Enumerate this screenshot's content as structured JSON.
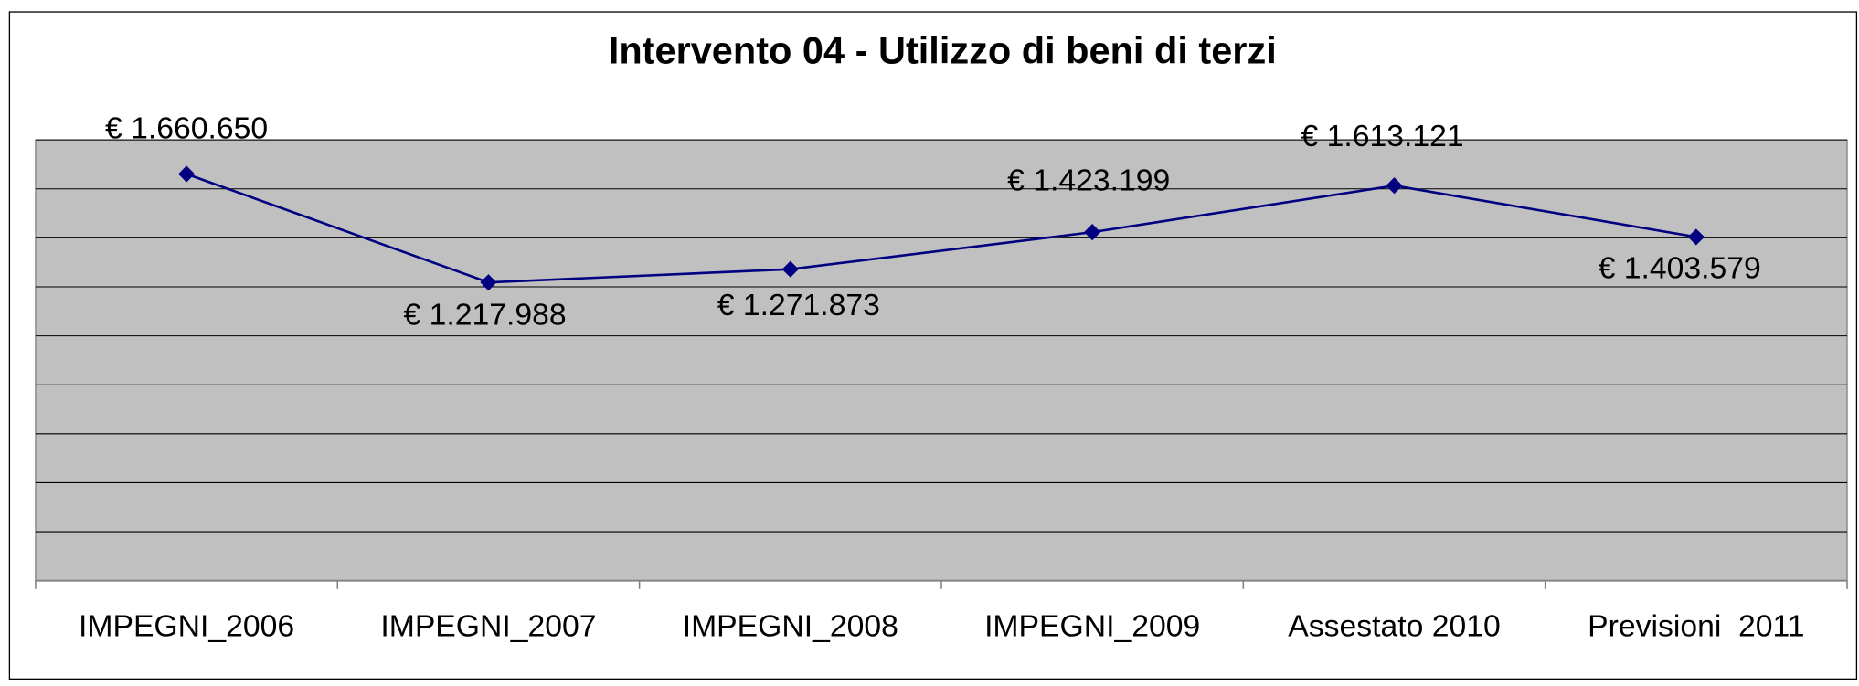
{
  "chart_data": {
    "type": "line",
    "title": "Intervento 04 - Utilizzo di beni di terzi",
    "categories": [
      "IMPEGNI_2006",
      "IMPEGNI_2007",
      "IMPEGNI_2008",
      "IMPEGNI_2009",
      "Assestato 2010",
      "Previsioni  2011"
    ],
    "values": [
      1660650,
      1217988,
      1271873,
      1423199,
      1613121,
      1403579
    ],
    "value_labels": [
      "€ 1.660.650",
      "€ 1.217.988",
      "€ 1.271.873",
      "€ 1.423.199",
      "€ 1.613.121",
      "€ 1.403.579"
    ],
    "color": "#000080",
    "ylim": [
      0,
      1800000
    ],
    "yticks": [
      0,
      200000,
      400000,
      600000,
      800000,
      1000000,
      1200000,
      1400000,
      1600000,
      1800000
    ],
    "grid": true
  }
}
